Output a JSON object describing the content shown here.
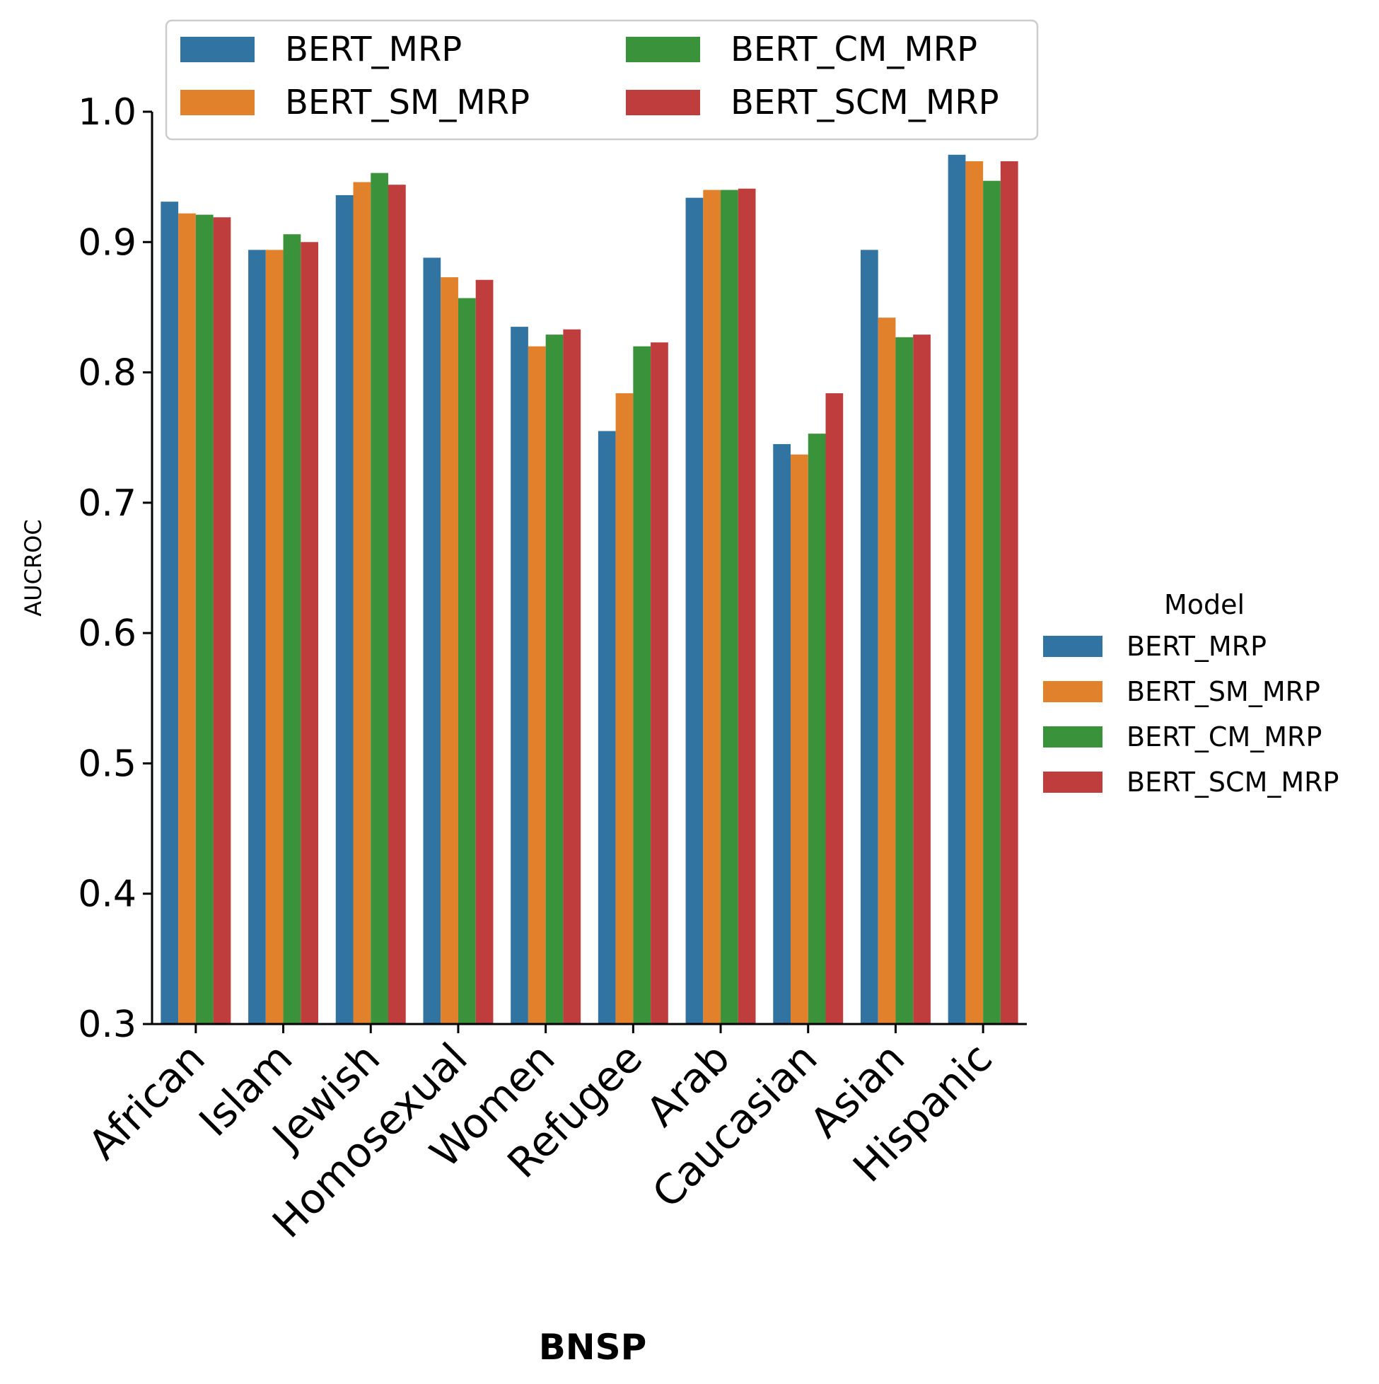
{
  "chart_data": {
    "type": "bar",
    "title": "",
    "xlabel": "BNSP",
    "ylabel": "AUCROC",
    "ylim": [
      0.3,
      1.0
    ],
    "yticks": [
      "0.3",
      "0.4",
      "0.5",
      "0.6",
      "0.7",
      "0.8",
      "0.9",
      "1.0"
    ],
    "grid": false,
    "categories": [
      "African",
      "Islam",
      "Jewish",
      "Homosexual",
      "Women",
      "Refugee",
      "Arab",
      "Caucasian",
      "Asian",
      "Hispanic"
    ],
    "series": [
      {
        "name": "BERT_MRP",
        "color": "#3274a1",
        "values": [
          0.931,
          0.894,
          0.936,
          0.888,
          0.835,
          0.755,
          0.934,
          0.745,
          0.894,
          0.967
        ]
      },
      {
        "name": "BERT_SM_MRP",
        "color": "#e1812c",
        "values": [
          0.922,
          0.894,
          0.946,
          0.873,
          0.82,
          0.784,
          0.94,
          0.737,
          0.842,
          0.962
        ]
      },
      {
        "name": "BERT_CM_MRP",
        "color": "#3a923a",
        "values": [
          0.921,
          0.906,
          0.953,
          0.857,
          0.829,
          0.82,
          0.94,
          0.753,
          0.827,
          0.947
        ]
      },
      {
        "name": "BERT_SCM_MRP",
        "color": "#c03d3e",
        "values": [
          0.919,
          0.9,
          0.944,
          0.871,
          0.833,
          0.823,
          0.941,
          0.784,
          0.829,
          0.962
        ]
      }
    ],
    "legend_top": {
      "placement": "top"
    },
    "legend_side": {
      "title": "Model",
      "placement": "right"
    }
  }
}
